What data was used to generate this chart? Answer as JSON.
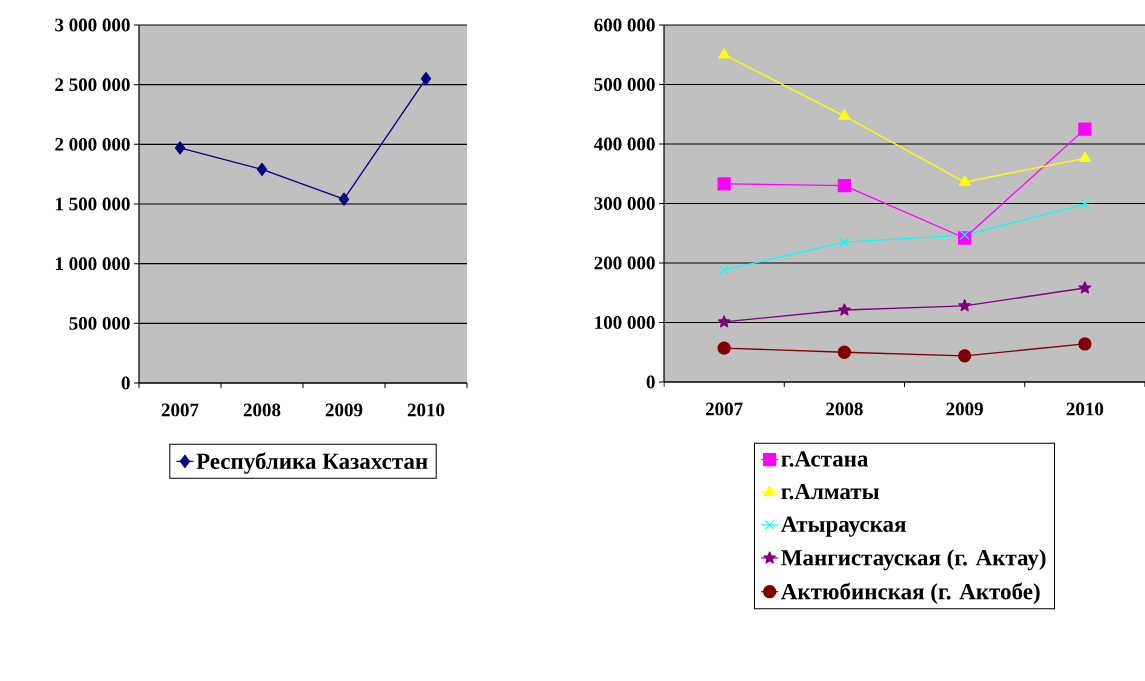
{
  "chart_data": [
    {
      "type": "line",
      "categories": [
        "2007",
        "2008",
        "2009",
        "2010"
      ],
      "series": [
        {
          "name": "Республика Казахстан",
          "color": "#000080",
          "marker": "diamond",
          "values": [
            1970000,
            1790000,
            1540000,
            2550000
          ]
        }
      ],
      "ylim": [
        0,
        3000000
      ],
      "yticks": [
        0,
        {
          "value": 500000,
          "label": "500 000"
        },
        {
          "value": 1000000,
          "label": "1 000 000"
        },
        {
          "value": 1500000,
          "label": "1 500 000"
        },
        {
          "value": 2000000,
          "label": "2 000 000"
        },
        {
          "value": 2500000,
          "label": "2 500 000"
        },
        {
          "value": 3000000,
          "label": "3 000 000"
        }
      ],
      "grid": "y",
      "legend": "bottom"
    },
    {
      "type": "line",
      "categories": [
        "2007",
        "2008",
        "2009",
        "2010"
      ],
      "series": [
        {
          "name": "г.Астана",
          "color": "#ff00ff",
          "marker": "square",
          "values": [
            333000,
            330000,
            242000,
            425000
          ]
        },
        {
          "name": "г.Алматы",
          "color": "#ffff00",
          "marker": "triangle",
          "values": [
            550000,
            447000,
            336000,
            376000
          ]
        },
        {
          "name": "Атырауская",
          "color": "#00ffff",
          "marker": "cross",
          "values": [
            188000,
            235000,
            247000,
            299000
          ]
        },
        {
          "name": "Мангистауская (г. Актау)",
          "color": "#800080",
          "marker": "star",
          "values": [
            101000,
            121000,
            128000,
            158000
          ]
        },
        {
          "name": "Актюбинская (г. Актобе)",
          "color": "#800000",
          "marker": "circle",
          "values": [
            57000,
            50000,
            44000,
            64000
          ]
        }
      ],
      "ylim": [
        0,
        600000
      ],
      "yticks": [
        0,
        {
          "value": 100000,
          "label": "100 000"
        },
        {
          "value": 200000,
          "label": "200 000"
        },
        {
          "value": 300000,
          "label": "300 000"
        },
        {
          "value": 400000,
          "label": "400 000"
        },
        {
          "value": 500000,
          "label": "500 000"
        },
        {
          "value": 600000,
          "label": "600 000"
        }
      ],
      "grid": "y",
      "legend": "bottom"
    }
  ]
}
